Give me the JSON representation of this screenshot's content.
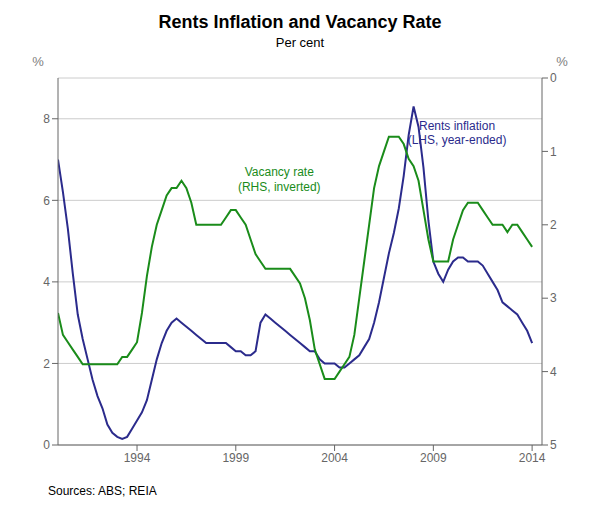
{
  "chart_data": {
    "type": "line",
    "title": "Rents Inflation and Vacancy Rate",
    "subtitle": "Per cent",
    "source": "Sources:  ABS; REIA",
    "y_label": "%",
    "y2_label": "%",
    "xlim": [
      1990.0,
      2014.5
    ],
    "xticks": [
      1994,
      1999,
      2004,
      2009,
      2014
    ],
    "ylim": [
      0,
      9
    ],
    "yticks": [
      0,
      2,
      4,
      6,
      8
    ],
    "y2lim": [
      5,
      0
    ],
    "y2ticks": [
      0,
      1,
      2,
      3,
      4,
      5
    ],
    "grid": true,
    "x": [
      1990.0,
      1990.25,
      1990.5,
      1990.75,
      1991.0,
      1991.25,
      1991.5,
      1991.75,
      1992.0,
      1992.25,
      1992.5,
      1992.75,
      1993.0,
      1993.25,
      1993.5,
      1993.75,
      1994.0,
      1994.25,
      1994.5,
      1994.75,
      1995.0,
      1995.25,
      1995.5,
      1995.75,
      1996.0,
      1996.25,
      1996.5,
      1996.75,
      1997.0,
      1997.25,
      1997.5,
      1997.75,
      1998.0,
      1998.25,
      1998.5,
      1998.75,
      1999.0,
      1999.25,
      1999.5,
      1999.75,
      2000.0,
      2000.25,
      2000.5,
      2000.75,
      2001.0,
      2001.25,
      2001.5,
      2001.75,
      2002.0,
      2002.25,
      2002.5,
      2002.75,
      2003.0,
      2003.25,
      2003.5,
      2003.75,
      2004.0,
      2004.25,
      2004.5,
      2004.75,
      2005.0,
      2005.25,
      2005.5,
      2005.75,
      2006.0,
      2006.25,
      2006.5,
      2006.75,
      2007.0,
      2007.25,
      2007.5,
      2007.75,
      2008.0,
      2008.25,
      2008.5,
      2008.75,
      2009.0,
      2009.25,
      2009.5,
      2009.75,
      2010.0,
      2010.25,
      2010.5,
      2010.75,
      2011.0,
      2011.25,
      2011.5,
      2011.75,
      2012.0,
      2012.25,
      2012.5,
      2012.75,
      2013.0,
      2013.25,
      2013.5,
      2013.75,
      2014.0
    ],
    "series": [
      {
        "name": "Rents inflation\n(LHS, year-ended)",
        "color": "#2b2b8c",
        "values": [
          7.0,
          6.2,
          5.3,
          4.2,
          3.2,
          2.6,
          2.1,
          1.6,
          1.2,
          0.9,
          0.5,
          0.3,
          0.2,
          0.15,
          0.2,
          0.4,
          0.6,
          0.8,
          1.1,
          1.6,
          2.1,
          2.5,
          2.8,
          3.0,
          3.1,
          3.0,
          2.9,
          2.8,
          2.7,
          2.6,
          2.5,
          2.5,
          2.5,
          2.5,
          2.5,
          2.4,
          2.3,
          2.3,
          2.2,
          2.2,
          2.3,
          3.0,
          3.2,
          3.1,
          3.0,
          2.9,
          2.8,
          2.7,
          2.6,
          2.5,
          2.4,
          2.3,
          2.3,
          2.1,
          2.0,
          2.0,
          2.0,
          1.9,
          1.9,
          2.0,
          2.1,
          2.2,
          2.4,
          2.6,
          3.0,
          3.5,
          4.1,
          4.7,
          5.2,
          5.8,
          6.6,
          7.6,
          8.3,
          7.8,
          6.8,
          5.5,
          4.5,
          4.2,
          4.0,
          4.3,
          4.5,
          4.6,
          4.6,
          4.5,
          4.5,
          4.5,
          4.4,
          4.2,
          4.0,
          3.8,
          3.5,
          3.4,
          3.3,
          3.2,
          3.0,
          2.8,
          2.5
        ]
      },
      {
        "name": "Vacancy rate\n(RHS, inverted)",
        "color": "#1a8c1a",
        "axis": "y2",
        "values": [
          3.2,
          3.5,
          3.6,
          3.7,
          3.8,
          3.9,
          3.9,
          3.9,
          3.9,
          3.9,
          3.9,
          3.9,
          3.9,
          3.8,
          3.8,
          3.7,
          3.6,
          3.2,
          2.7,
          2.3,
          2.0,
          1.8,
          1.6,
          1.5,
          1.5,
          1.4,
          1.5,
          1.7,
          2.0,
          2.0,
          2.0,
          2.0,
          2.0,
          2.0,
          1.9,
          1.8,
          1.8,
          1.9,
          2.0,
          2.2,
          2.4,
          2.5,
          2.6,
          2.6,
          2.6,
          2.6,
          2.6,
          2.6,
          2.7,
          2.8,
          3.0,
          3.3,
          3.7,
          3.9,
          4.1,
          4.1,
          4.1,
          4.0,
          3.9,
          3.8,
          3.5,
          3.0,
          2.5,
          2.0,
          1.5,
          1.2,
          1.0,
          0.8,
          0.8,
          0.8,
          0.9,
          1.1,
          1.2,
          1.4,
          1.8,
          2.2,
          2.5,
          2.5,
          2.5,
          2.5,
          2.2,
          2.0,
          1.8,
          1.7,
          1.7,
          1.7,
          1.8,
          1.9,
          2.0,
          2.0,
          2.0,
          2.1,
          2.0,
          2.0,
          2.1,
          2.2,
          2.3
        ]
      }
    ]
  }
}
